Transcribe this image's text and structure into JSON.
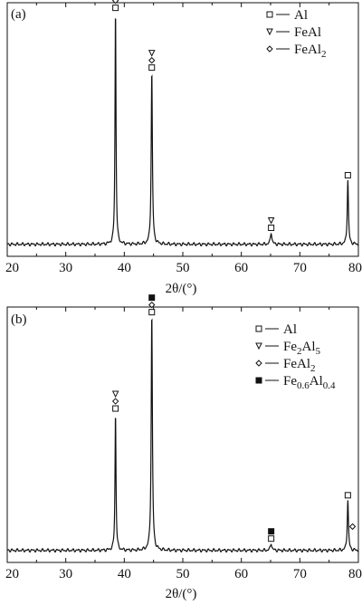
{
  "chart_data": [
    {
      "type": "line",
      "panel_label": "(a)",
      "xlabel": "2θ/(°)",
      "xlim": [
        20,
        80
      ],
      "xticks": [
        20,
        30,
        40,
        50,
        60,
        70,
        80
      ],
      "ylabel": "",
      "y_tick_labels": false,
      "grid": false,
      "legend_position": "top-right",
      "legend": [
        {
          "marker": "square-open",
          "label": "Al",
          "base": "Al",
          "sub": ""
        },
        {
          "marker": "triangle-down-open",
          "label": "FeAl",
          "base": "FeAl",
          "sub": ""
        },
        {
          "marker": "diamond-open",
          "label": "FeAl2",
          "base": "FeAl",
          "sub": "2"
        }
      ],
      "baseline": 0.02,
      "peaks": [
        {
          "x": 38.5,
          "height": 0.98,
          "width": 0.1
        },
        {
          "x": 44.7,
          "height": 0.72,
          "width": 0.12
        },
        {
          "x": 65.1,
          "height": 0.05,
          "width": 0.15
        },
        {
          "x": 78.2,
          "height": 0.27,
          "width": 0.12
        }
      ],
      "peak_markers": [
        {
          "x": 38.5,
          "y": 0.99,
          "markers": [
            "diamond-open",
            "square-open"
          ]
        },
        {
          "x": 44.7,
          "y": 0.74,
          "markers": [
            "triangle-down-open",
            "diamond-open",
            "square-open"
          ]
        },
        {
          "x": 65.1,
          "y": 0.07,
          "markers": [
            "triangle-down-open",
            "square-open"
          ]
        },
        {
          "x": 78.2,
          "y": 0.29,
          "markers": [
            "square-open"
          ]
        }
      ]
    },
    {
      "type": "line",
      "panel_label": "(b)",
      "xlabel": "2θ/(°)",
      "xlim": [
        20,
        80
      ],
      "xticks": [
        20,
        30,
        40,
        50,
        60,
        70,
        80
      ],
      "ylabel": "",
      "y_tick_labels": false,
      "grid": false,
      "legend_position": "top-right",
      "legend": [
        {
          "marker": "square-open",
          "label": "Al",
          "base": "Al",
          "sub": ""
        },
        {
          "marker": "triangle-down-open",
          "label": "Fe2Al5",
          "parts": [
            [
              "Fe",
              ""
            ],
            [
              "2",
              "sub"
            ],
            [
              "Al",
              ""
            ],
            [
              "5",
              "sub"
            ]
          ]
        },
        {
          "marker": "diamond-open",
          "label": "FeAl2",
          "parts": [
            [
              "FeAl",
              ""
            ],
            [
              "2",
              "sub"
            ]
          ]
        },
        {
          "marker": "square-filled",
          "label": "Fe0.6Al0.4",
          "parts": [
            [
              "Fe",
              ""
            ],
            [
              "0.6",
              "sub"
            ],
            [
              "Al",
              ""
            ],
            [
              "0.4",
              "sub"
            ]
          ]
        }
      ],
      "baseline": 0.02,
      "peaks": [
        {
          "x": 38.5,
          "height": 0.57,
          "width": 0.1
        },
        {
          "x": 44.7,
          "height": 0.98,
          "width": 0.12
        },
        {
          "x": 65.1,
          "height": 0.03,
          "width": 0.15
        },
        {
          "x": 78.2,
          "height": 0.21,
          "width": 0.12
        }
      ],
      "peak_markers": [
        {
          "x": 38.5,
          "y": 0.59,
          "markers": [
            "triangle-down-open",
            "diamond-open",
            "square-open"
          ]
        },
        {
          "x": 44.7,
          "y": 0.99,
          "markers": [
            "square-filled",
            "diamond-open",
            "square-open"
          ]
        },
        {
          "x": 65.1,
          "y": 0.05,
          "markers": [
            "square-filled",
            "square-open"
          ]
        },
        {
          "x": 78.2,
          "y": 0.23,
          "markers": [
            "square-open"
          ]
        },
        {
          "x": 79.0,
          "y": 0.1,
          "markers": [
            "diamond-open"
          ]
        }
      ]
    }
  ]
}
